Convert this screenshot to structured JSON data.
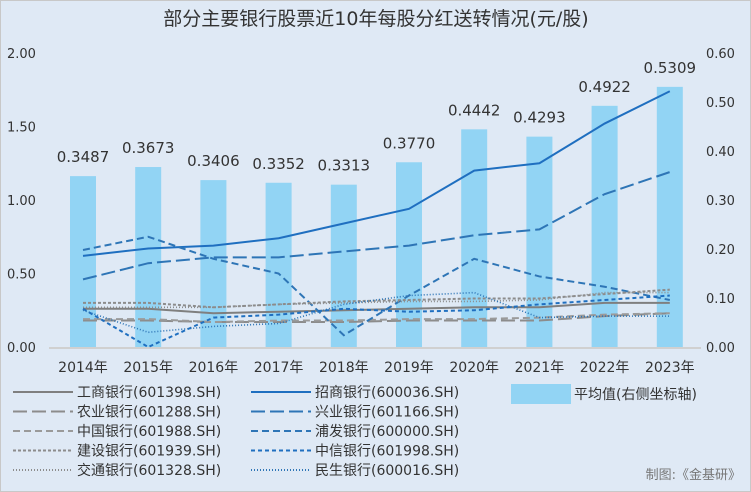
{
  "chart_data": {
    "type": "bar+line",
    "title": "部分主要银行股票近10年每股分红送转情况(元/股)",
    "categories": [
      "2014年",
      "2015年",
      "2016年",
      "2017年",
      "2018年",
      "2019年",
      "2020年",
      "2021年",
      "2022年",
      "2023年"
    ],
    "left_axis": {
      "ylim": [
        0,
        2
      ],
      "ticks": [
        "0.00",
        "0.50",
        "1.00",
        "1.50",
        "2.00"
      ]
    },
    "right_axis": {
      "ylim": [
        0,
        0.6
      ],
      "ticks": [
        "0.00",
        "0.10",
        "0.20",
        "0.30",
        "0.40",
        "0.50",
        "0.60"
      ]
    },
    "bars": {
      "name": "平均值(右侧坐标轴)",
      "values": [
        0.3487,
        0.3673,
        0.3406,
        0.3352,
        0.3313,
        0.377,
        0.4442,
        0.4293,
        0.4922,
        0.5309
      ],
      "labels": [
        "0.3487",
        "0.3673",
        "0.3406",
        "0.3352",
        "0.3313",
        "0.3770",
        "0.4442",
        "0.4293",
        "0.4922",
        "0.5309"
      ],
      "color": "#92d4f4"
    },
    "series": [
      {
        "name": "工商银行(601398.SH)",
        "color": "#7f7f7f",
        "dash": "",
        "values": [
          0.26,
          0.26,
          0.23,
          0.24,
          0.25,
          0.26,
          0.27,
          0.27,
          0.3,
          0.3
        ]
      },
      {
        "name": "招商银行(600036.SH)",
        "color": "#1f6fc0",
        "dash": "",
        "values": [
          0.62,
          0.67,
          0.69,
          0.74,
          0.84,
          0.94,
          1.2,
          1.25,
          1.52,
          1.74
        ]
      },
      {
        "name": "农业银行(601288.SH)",
        "color": "#8c8c8c",
        "dash": "14 5",
        "values": [
          0.18,
          0.18,
          0.17,
          0.17,
          0.17,
          0.18,
          0.18,
          0.18,
          0.21,
          0.23
        ]
      },
      {
        "name": "兴业银行(601166.SH)",
        "color": "#2e75b6",
        "dash": "14 5",
        "values": [
          0.46,
          0.57,
          0.61,
          0.61,
          0.65,
          0.69,
          0.76,
          0.8,
          1.04,
          1.19
        ]
      },
      {
        "name": "中国银行(601988.SH)",
        "color": "#9a9a9a",
        "dash": "7 4",
        "values": [
          0.19,
          0.19,
          0.17,
          0.18,
          0.18,
          0.19,
          0.19,
          0.2,
          0.22,
          0.23
        ]
      },
      {
        "name": "浦发银行(600000.SH)",
        "color": "#2e75b6",
        "dash": "7 4",
        "values": [
          0.66,
          0.75,
          0.6,
          0.5,
          0.08,
          0.35,
          0.6,
          0.48,
          0.41,
          0.32
        ]
      },
      {
        "name": "建设银行(601939.SH)",
        "color": "#8c8c8c",
        "dash": "3 2",
        "values": [
          0.3,
          0.3,
          0.27,
          0.29,
          0.31,
          0.32,
          0.33,
          0.33,
          0.36,
          0.39
        ]
      },
      {
        "name": "中信银行(601998.SH)",
        "color": "#1f6fc0",
        "dash": "4 3",
        "values": [
          0.26,
          0.0,
          0.2,
          0.22,
          0.26,
          0.24,
          0.25,
          0.29,
          0.32,
          0.35
        ]
      },
      {
        "name": "交通银行(601328.SH)",
        "color": "#8c8c8c",
        "dash": "1 2",
        "values": [
          0.27,
          0.27,
          0.27,
          0.29,
          0.3,
          0.31,
          0.31,
          0.32,
          0.37,
          0.37
        ]
      },
      {
        "name": "民生银行(600016.SH)",
        "color": "#2e75b6",
        "dash": "1 2",
        "values": [
          0.25,
          0.1,
          0.14,
          0.16,
          0.29,
          0.35,
          0.37,
          0.2,
          0.21,
          0.21
        ]
      }
    ]
  },
  "source": "制图:《金基研》"
}
